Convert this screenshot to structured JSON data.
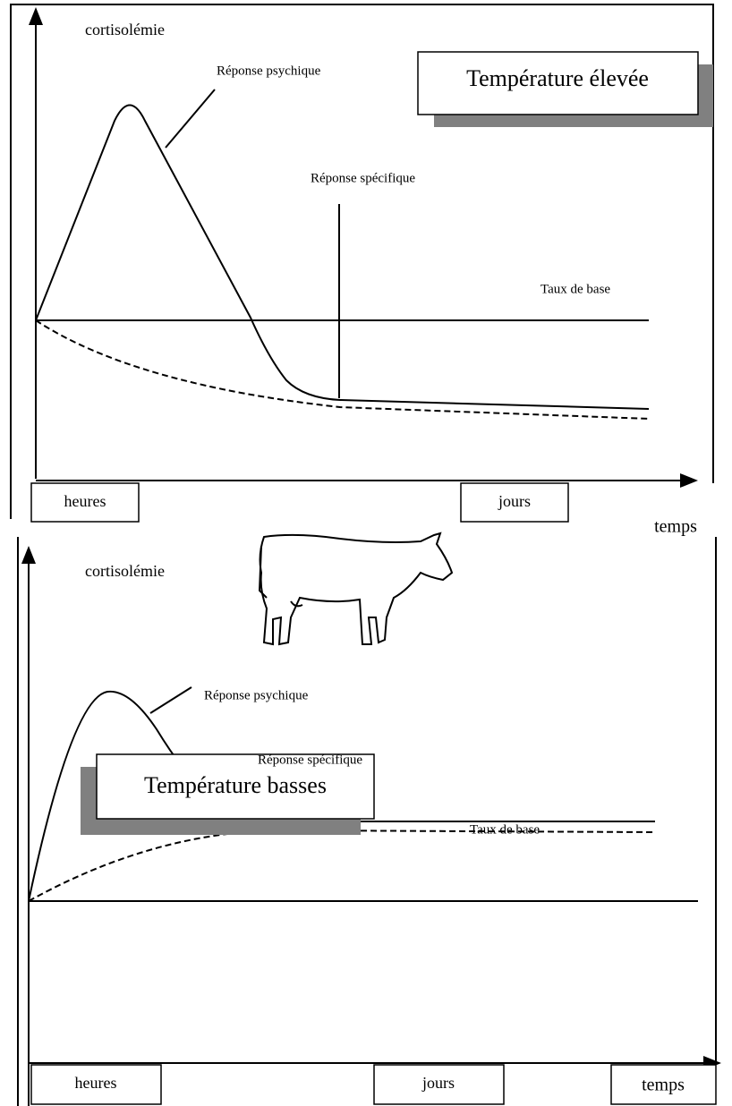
{
  "panels": [
    {
      "title": "Température élevée",
      "y_label": "cortisolémie",
      "psychic": "Réponse psychique",
      "specific": "Réponse spécifique",
      "base": "Taux de base",
      "x_labels": [
        "heures",
        "jours"
      ],
      "x_axis": "temps"
    },
    {
      "title": "Température basses",
      "y_label": "cortisolémie",
      "psychic": "Réponse psychique",
      "specific": "Réponse spécifique",
      "base": "Taux de base",
      "x_labels": [
        "heures",
        "jours"
      ],
      "x_axis": "temps"
    }
  ]
}
